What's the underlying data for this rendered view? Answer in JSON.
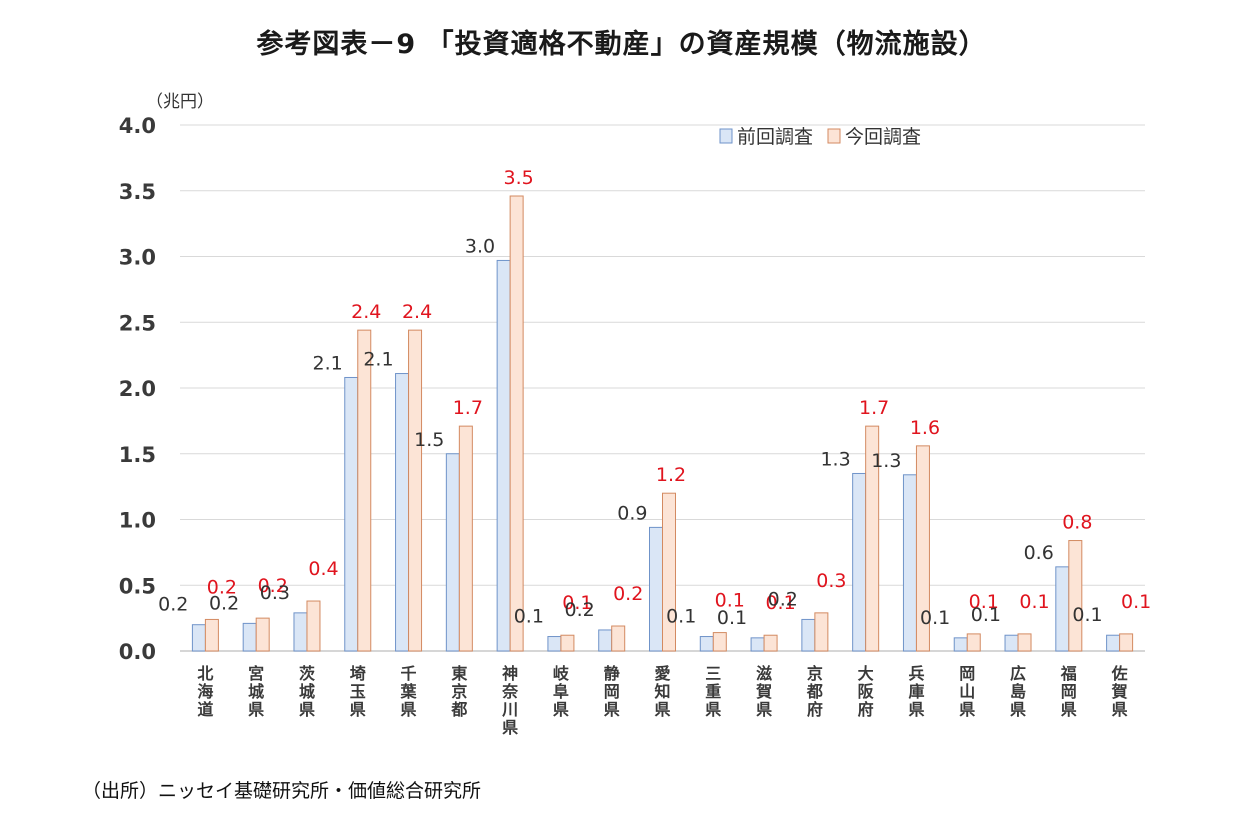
{
  "page_title": "参考図表－9 「投資適格不動産」の資産規模（物流施設）",
  "source_note": "（出所）ニッセイ基礎研究所・価値総合研究所",
  "chart_data": {
    "type": "bar",
    "title": "参考図表－9 「投資適格不動産」の資産規模（物流施設）",
    "unit_label": "（兆円）",
    "ylim": [
      0,
      4.0
    ],
    "y_ticks": [
      "0.0",
      "0.5",
      "1.0",
      "1.5",
      "2.0",
      "2.5",
      "3.0",
      "3.5",
      "4.0"
    ],
    "grid": true,
    "legend_position": "top-right",
    "categories": [
      "北海道",
      "宮城県",
      "茨城県",
      "埼玉県",
      "千葉県",
      "東京都",
      "神奈川県",
      "岐阜県",
      "静岡県",
      "愛知県",
      "三重県",
      "滋賀県",
      "京都府",
      "大阪府",
      "兵庫県",
      "岡山県",
      "広島県",
      "福岡県",
      "佐賀県"
    ],
    "series": [
      {
        "name": "前回調査",
        "color": "#dae6f6",
        "border_color": "#6f93c9",
        "label_color": "#333333",
        "values": [
          0.2,
          0.21,
          0.29,
          2.08,
          2.11,
          1.5,
          2.97,
          0.11,
          0.16,
          0.94,
          0.11,
          0.1,
          0.24,
          1.35,
          1.34,
          0.1,
          0.12,
          0.64,
          0.12
        ],
        "labels": [
          "0.2",
          "0.2",
          "0.3",
          "2.1",
          "2.1",
          "1.5",
          "3.0",
          "0.1",
          "0.2",
          "0.9",
          "0.1",
          "0.1",
          "0.2",
          "1.3",
          "1.3",
          "0.1",
          "0.1",
          "0.6",
          "0.1"
        ]
      },
      {
        "name": "今回調査",
        "color": "#fce4d6",
        "border_color": "#d38a61",
        "label_color": "#e0141e",
        "values": [
          0.24,
          0.25,
          0.38,
          2.44,
          2.44,
          1.71,
          3.46,
          0.12,
          0.19,
          1.2,
          0.14,
          0.12,
          0.29,
          1.71,
          1.56,
          0.13,
          0.13,
          0.84,
          0.13
        ],
        "labels": [
          "0.2",
          "0.2",
          "0.4",
          "2.4",
          "2.4",
          "1.7",
          "3.5",
          "0.1",
          "0.2",
          "1.2",
          "0.1",
          "0.1",
          "0.3",
          "1.7",
          "1.6",
          "0.1",
          "0.1",
          "0.8",
          "0.1"
        ]
      }
    ],
    "axis_color": "#c8c8c8",
    "gridline_color": "#d9d9d9"
  }
}
